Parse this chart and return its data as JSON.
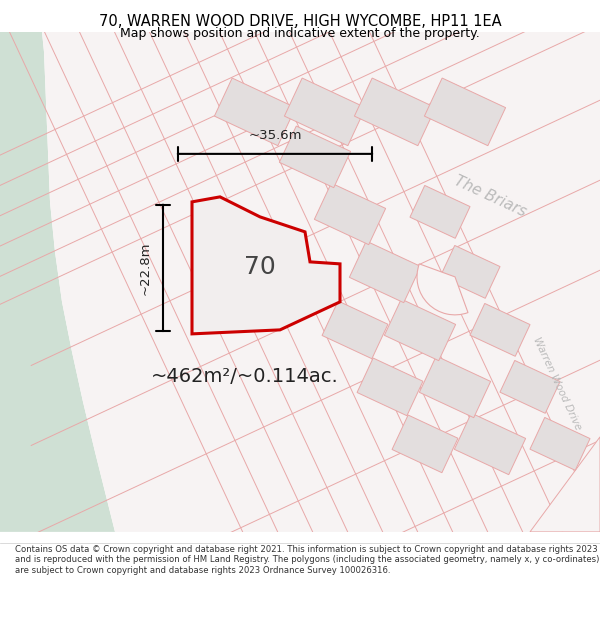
{
  "title_line1": "70, WARREN WOOD DRIVE, HIGH WYCOMBE, HP11 1EA",
  "title_line2": "Map shows position and indicative extent of the property.",
  "footer_text": "Contains OS data © Crown copyright and database right 2021. This information is subject to Crown copyright and database rights 2023 and is reproduced with the permission of HM Land Registry. The polygons (including the associated geometry, namely x, y co-ordinates) are subject to Crown copyright and database rights 2023 Ordnance Survey 100026316.",
  "area_label": "~462m²/~0.114ac.",
  "width_label": "~35.6m",
  "height_label": "~22.8m",
  "property_number": "70",
  "bg_color": "#f2eeee",
  "green_color": "#cfe0d4",
  "building_fill": "#e3dede",
  "building_edge": "#e8a8a8",
  "prop_fill": "#f2eeee",
  "prop_edge": "#cc0000",
  "road_line": "#e8a8a8",
  "dim_color": "#222222",
  "street1": "Warren Wood Drive",
  "street2": "The Briars",
  "road_bg": "#f7f3f3",
  "street_color": "#bbbbbb"
}
